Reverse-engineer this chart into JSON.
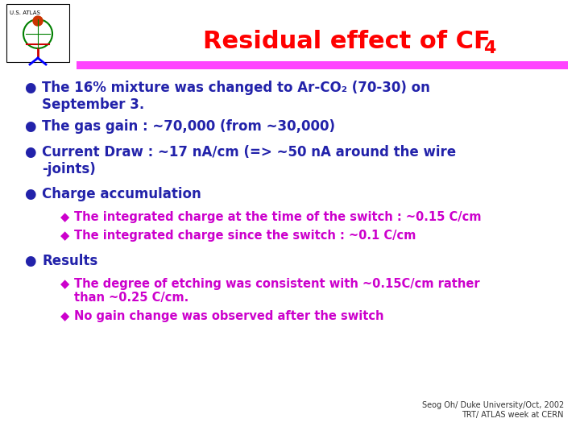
{
  "title_main": "Residual effect of CF",
  "title_sub": "4",
  "title_color": "#ff0000",
  "underline_color": "#ff44ff",
  "bg_color": "#ffffff",
  "bullet_color": "#2222aa",
  "sub_bullet_color": "#cc00cc",
  "bullet_char": "●",
  "sub_bullet_char": "◆",
  "bullets": [
    "The 16% mixture was changed to Ar-CO₂ (70-30) on\nSeptember 3.",
    "The gas gain : ~70,000 (from ~30,000)",
    "Current Draw : ~17 nA/cm (=> ~50 nA around the wire\n-joints)",
    "Charge accumulation"
  ],
  "sub_bullets_charge": [
    "The integrated charge at the time of the switch : ~0.15 C/cm",
    "The integrated charge since the switch : ~0.1 C/cm"
  ],
  "bullet_results": "Results",
  "sub_bullets_results": [
    "The degree of etching was consistent with ~0.15C/cm rather\nthan ~0.25 C/cm.",
    "No gain change was observed after the switch"
  ],
  "footer": "Seog Oh/ Duke University/Oct, 2002\nTRT/ ATLAS week at CERN",
  "footer_color": "#333333",
  "title_fontsize": 22,
  "title_sub_fontsize": 16,
  "main_bullet_fontsize": 12,
  "sub_bullet_fontsize": 10.5,
  "footer_fontsize": 7
}
